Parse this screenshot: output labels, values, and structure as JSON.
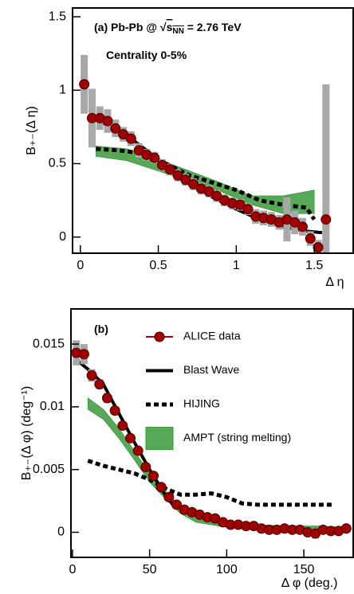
{
  "chart_data": [
    {
      "type": "line",
      "ylabel": "B₊₋(Δ η)",
      "xlabel": "Δ η",
      "annotations": [
        {
          "parts": [
            "(a) Pb-Pb @ ",
            "√",
            "s",
            "NN",
            " = 2.76 TeV"
          ]
        },
        {
          "parts": [
            "Centrality 0-5%"
          ]
        }
      ],
      "xlim": [
        -0.05,
        1.75
      ],
      "ylim": [
        -0.11,
        1.56
      ],
      "xticks": [
        0,
        0.5,
        1,
        1.5
      ],
      "yticks": [
        0,
        0.5,
        1,
        1.5
      ],
      "legend": false,
      "series": [
        {
          "style": "band",
          "color": "#3a9a3a",
          "x": [
            0.1,
            0.3,
            0.5,
            0.7,
            0.9,
            1.1,
            1.3,
            1.5
          ],
          "low": [
            0.55,
            0.52,
            0.45,
            0.38,
            0.31,
            0.22,
            0.16,
            0.16
          ],
          "high": [
            0.62,
            0.6,
            0.53,
            0.45,
            0.37,
            0.28,
            0.28,
            0.32
          ]
        },
        {
          "style": "dashed",
          "color": "#000000",
          "x": [
            0.1,
            0.25,
            0.4,
            0.55,
            0.7,
            0.85,
            1.0,
            1.15,
            1.3,
            1.45,
            1.5
          ],
          "values": [
            0.6,
            0.59,
            0.57,
            0.5,
            0.42,
            0.37,
            0.32,
            0.25,
            0.22,
            0.2,
            0.12
          ]
        },
        {
          "style": "line",
          "color": "#000000",
          "x": [
            0.05,
            0.2,
            0.35,
            0.45,
            0.55,
            0.7,
            0.85,
            1.0,
            1.15,
            1.3,
            1.45,
            1.55
          ],
          "values": [
            0.82,
            0.75,
            0.65,
            0.57,
            0.48,
            0.37,
            0.27,
            0.19,
            0.12,
            0.07,
            0.04,
            0.03
          ]
        },
        {
          "style": "points",
          "color": "#a00000",
          "x": [
            0.025,
            0.075,
            0.125,
            0.175,
            0.225,
            0.275,
            0.325,
            0.375,
            0.425,
            0.475,
            0.525,
            0.575,
            0.625,
            0.675,
            0.725,
            0.775,
            0.825,
            0.875,
            0.925,
            0.975,
            1.025,
            1.075,
            1.125,
            1.175,
            1.225,
            1.275,
            1.325,
            1.375,
            1.425,
            1.475,
            1.525,
            1.575
          ],
          "values": [
            1.04,
            0.81,
            0.81,
            0.79,
            0.74,
            0.7,
            0.67,
            0.59,
            0.56,
            0.54,
            0.49,
            0.46,
            0.42,
            0.39,
            0.36,
            0.33,
            0.31,
            0.28,
            0.25,
            0.23,
            0.22,
            0.19,
            0.14,
            0.13,
            0.12,
            0.1,
            0.12,
            0.1,
            0.07,
            -0.01,
            -0.07,
            0.12
          ],
          "errors": [
            0.2,
            0.2,
            0.08,
            0.08,
            0.06,
            0.05,
            0.05,
            0.05,
            0.04,
            0.04,
            0.04,
            0.04,
            0.04,
            0.04,
            0.04,
            0.04,
            0.04,
            0.04,
            0.04,
            0.04,
            0.04,
            0.04,
            0.05,
            0.05,
            0.05,
            0.05,
            0.15,
            0.08,
            0.06,
            0.05,
            0.05,
            0.92
          ]
        }
      ]
    },
    {
      "type": "line",
      "ylabel": "B₊₋(Δ φ) (deg⁻¹)",
      "xlabel": "Δ φ (deg.)",
      "annotations": [
        {
          "parts": [
            "(b)"
          ]
        }
      ],
      "xlim": [
        -1,
        182
      ],
      "ylim": [
        -0.002,
        0.0178
      ],
      "xticks": [
        0,
        50,
        100,
        150
      ],
      "yticks": [
        0,
        0.005,
        0.01,
        0.015
      ],
      "legend": "upper right",
      "series": [
        {
          "name": "AMPT (string melting)",
          "style": "band",
          "color": "#3a9a3a",
          "x": [
            10,
            20,
            30,
            40,
            50,
            60,
            70,
            80,
            100,
            120,
            140,
            160,
            175
          ],
          "low": [
            0.0098,
            0.009,
            0.0075,
            0.0058,
            0.004,
            0.0027,
            0.0015,
            0.0008,
            0.0004,
            0.0002,
            0.0002,
            0.0002,
            0.0001
          ],
          "high": [
            0.0107,
            0.0098,
            0.0083,
            0.0065,
            0.0047,
            0.0033,
            0.002,
            0.0013,
            0.0008,
            0.0006,
            0.0005,
            0.0005,
            0.0004
          ]
        },
        {
          "name": "HIJING",
          "style": "dashed",
          "color": "#000000",
          "x": [
            10,
            20,
            30,
            40,
            50,
            60,
            70,
            80,
            90,
            100,
            110,
            120,
            140,
            160,
            170
          ],
          "values": [
            0.0057,
            0.0053,
            0.005,
            0.0047,
            0.0042,
            0.0035,
            0.003,
            0.003,
            0.0031,
            0.0028,
            0.0023,
            0.0022,
            0.0022,
            0.0022,
            0.0022
          ]
        },
        {
          "name": "Blast Wave",
          "style": "line",
          "color": "#000000",
          "x": [
            2,
            10,
            20,
            30,
            40,
            50,
            60,
            65
          ],
          "values": [
            0.0138,
            0.013,
            0.0118,
            0.0095,
            0.0072,
            0.005,
            0.003,
            0.0022
          ]
        },
        {
          "name": "ALICE data",
          "style": "points",
          "color": "#a00000",
          "x": [
            2.5,
            7.5,
            12.5,
            17.5,
            22.5,
            27.5,
            32.5,
            37.5,
            42.5,
            47.5,
            52.5,
            57.5,
            62.5,
            67.5,
            72.5,
            77.5,
            82.5,
            87.5,
            92.5,
            97.5,
            102.5,
            107.5,
            112.5,
            117.5,
            122.5,
            127.5,
            132.5,
            137.5,
            142.5,
            147.5,
            152.5,
            157.5,
            162.5,
            167.5,
            172.5,
            177.5
          ],
          "values": [
            0.0143,
            0.0142,
            0.0125,
            0.0118,
            0.0107,
            0.0097,
            0.0085,
            0.0075,
            0.0065,
            0.0052,
            0.0045,
            0.0036,
            0.0028,
            0.0022,
            0.0018,
            0.0016,
            0.0014,
            0.0012,
            0.0011,
            0.0008,
            0.0006,
            0.0006,
            0.0005,
            0.0005,
            0.0003,
            0.0002,
            0.0002,
            0.0003,
            0.0002,
            0.0002,
            0.0,
            -0.0001,
            0.0002,
            0.0001,
            0.0001,
            0.0003
          ],
          "errors": [
            0.001,
            0.0008,
            0.0005,
            0.0004,
            0.0004,
            0.0003,
            0.0003,
            0.0003,
            0.0003,
            0.0003,
            0.0003,
            0.0003,
            0.0003,
            0.0003,
            0.0003,
            0.0003,
            0.0003,
            0.0003,
            0.0003,
            0.0003,
            0.0003,
            0.0003,
            0.0003,
            0.0003,
            0.0003,
            0.0003,
            0.0003,
            0.0003,
            0.0003,
            0.0003,
            0.0003,
            0.0004,
            0.0003,
            0.0003,
            0.0003,
            0.0003
          ]
        }
      ]
    }
  ]
}
